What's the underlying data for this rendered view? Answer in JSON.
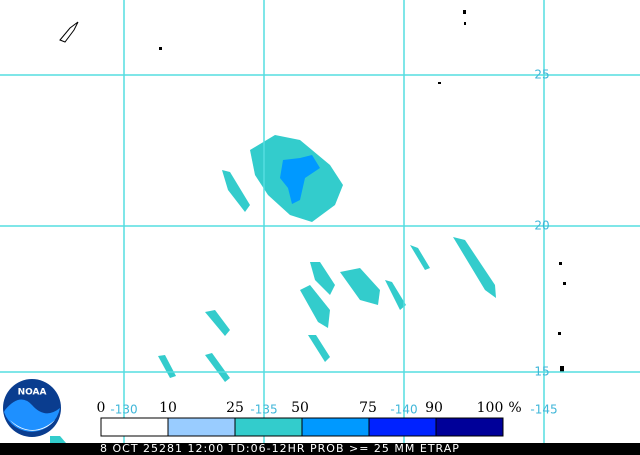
{
  "map": {
    "lat_labels": [
      "25",
      "20",
      "15"
    ],
    "lon_labels": [
      "-130",
      "-135",
      "-140",
      "-145"
    ]
  },
  "legend": {
    "labels": [
      "0",
      "10",
      "25",
      "50",
      "75",
      "90",
      "100"
    ],
    "unit": "%"
  },
  "logo": "NOAA",
  "footer": "8 OCT 25281 12:00 TD:06-12HR PROB >= 25 MM ETRAP"
}
